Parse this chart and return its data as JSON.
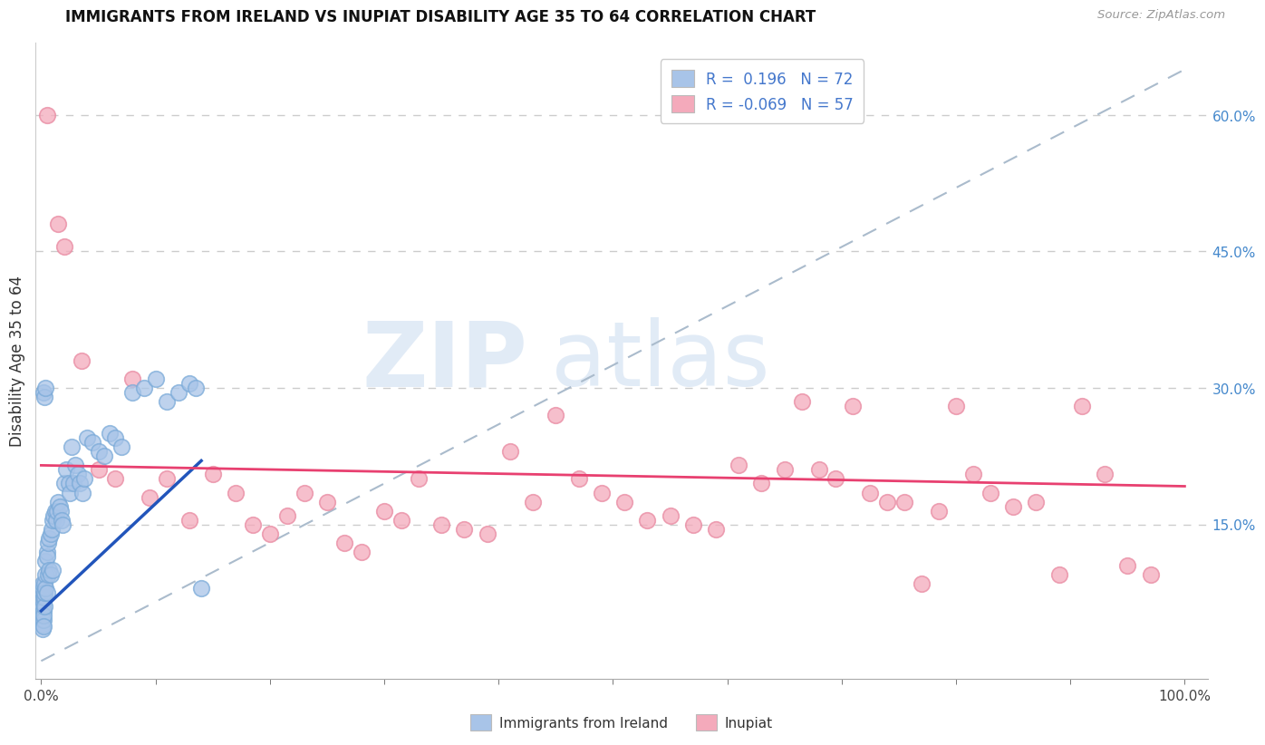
{
  "title": "IMMIGRANTS FROM IRELAND VS INUPIAT DISABILITY AGE 35 TO 64 CORRELATION CHART",
  "source": "Source: ZipAtlas.com",
  "ylabel": "Disability Age 35 to 64",
  "ylabel_right_ticks": [
    "60.0%",
    "45.0%",
    "30.0%",
    "15.0%"
  ],
  "ylabel_right_vals": [
    0.6,
    0.45,
    0.3,
    0.15
  ],
  "blue_color": "#A8C4E8",
  "blue_edge_color": "#7AAAD8",
  "pink_color": "#F4AABB",
  "pink_edge_color": "#E888A0",
  "blue_line_color": "#2255BB",
  "pink_line_color": "#E84070",
  "diag_line_color": "#AABBCC",
  "background": "#FFFFFF",
  "watermark_zip": "ZIP",
  "watermark_atlas": "atlas",
  "legend_text_color": "#4477CC",
  "legend_label_color": "#222222",
  "right_tick_color": "#4488CC"
}
